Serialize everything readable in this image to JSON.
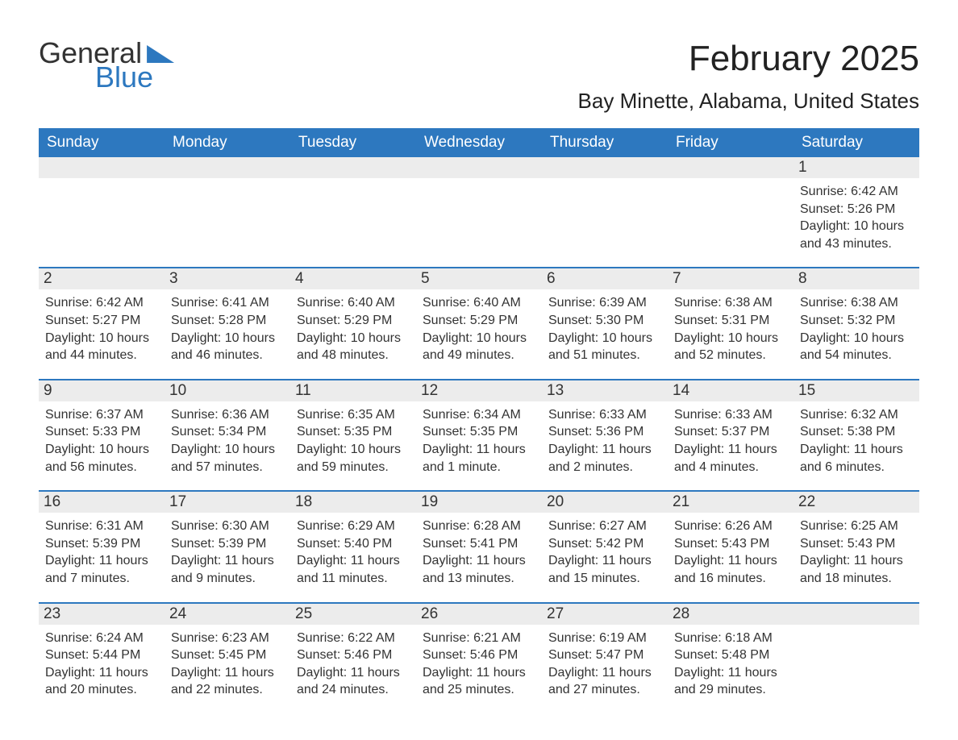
{
  "brand": {
    "name1": "General",
    "name2": "Blue",
    "accent_color": "#2d78bf",
    "text_color": "#333333"
  },
  "header": {
    "month_title": "February 2025",
    "location": "Bay Minette, Alabama, United States",
    "title_fontsize": 44,
    "location_fontsize": 26
  },
  "calendar": {
    "weekday_bg": "#2d78bf",
    "weekday_fg": "#ffffff",
    "cell_header_bg": "#ececec",
    "cell_header_border": "#2d78bf",
    "background_color": "#ffffff",
    "text_color": "#333333",
    "body_fontsize": 16,
    "daynum_fontsize": 19,
    "weekdays": [
      "Sunday",
      "Monday",
      "Tuesday",
      "Wednesday",
      "Thursday",
      "Friday",
      "Saturday"
    ],
    "weeks": [
      [
        {
          "empty": true
        },
        {
          "empty": true
        },
        {
          "empty": true
        },
        {
          "empty": true
        },
        {
          "empty": true
        },
        {
          "empty": true
        },
        {
          "n": "1",
          "sunrise": "Sunrise: 6:42 AM",
          "sunset": "Sunset: 5:26 PM",
          "dl1": "Daylight: 10 hours",
          "dl2": "and 43 minutes."
        }
      ],
      [
        {
          "n": "2",
          "sunrise": "Sunrise: 6:42 AM",
          "sunset": "Sunset: 5:27 PM",
          "dl1": "Daylight: 10 hours",
          "dl2": "and 44 minutes."
        },
        {
          "n": "3",
          "sunrise": "Sunrise: 6:41 AM",
          "sunset": "Sunset: 5:28 PM",
          "dl1": "Daylight: 10 hours",
          "dl2": "and 46 minutes."
        },
        {
          "n": "4",
          "sunrise": "Sunrise: 6:40 AM",
          "sunset": "Sunset: 5:29 PM",
          "dl1": "Daylight: 10 hours",
          "dl2": "and 48 minutes."
        },
        {
          "n": "5",
          "sunrise": "Sunrise: 6:40 AM",
          "sunset": "Sunset: 5:29 PM",
          "dl1": "Daylight: 10 hours",
          "dl2": "and 49 minutes."
        },
        {
          "n": "6",
          "sunrise": "Sunrise: 6:39 AM",
          "sunset": "Sunset: 5:30 PM",
          "dl1": "Daylight: 10 hours",
          "dl2": "and 51 minutes."
        },
        {
          "n": "7",
          "sunrise": "Sunrise: 6:38 AM",
          "sunset": "Sunset: 5:31 PM",
          "dl1": "Daylight: 10 hours",
          "dl2": "and 52 minutes."
        },
        {
          "n": "8",
          "sunrise": "Sunrise: 6:38 AM",
          "sunset": "Sunset: 5:32 PM",
          "dl1": "Daylight: 10 hours",
          "dl2": "and 54 minutes."
        }
      ],
      [
        {
          "n": "9",
          "sunrise": "Sunrise: 6:37 AM",
          "sunset": "Sunset: 5:33 PM",
          "dl1": "Daylight: 10 hours",
          "dl2": "and 56 minutes."
        },
        {
          "n": "10",
          "sunrise": "Sunrise: 6:36 AM",
          "sunset": "Sunset: 5:34 PM",
          "dl1": "Daylight: 10 hours",
          "dl2": "and 57 minutes."
        },
        {
          "n": "11",
          "sunrise": "Sunrise: 6:35 AM",
          "sunset": "Sunset: 5:35 PM",
          "dl1": "Daylight: 10 hours",
          "dl2": "and 59 minutes."
        },
        {
          "n": "12",
          "sunrise": "Sunrise: 6:34 AM",
          "sunset": "Sunset: 5:35 PM",
          "dl1": "Daylight: 11 hours",
          "dl2": "and 1 minute."
        },
        {
          "n": "13",
          "sunrise": "Sunrise: 6:33 AM",
          "sunset": "Sunset: 5:36 PM",
          "dl1": "Daylight: 11 hours",
          "dl2": "and 2 minutes."
        },
        {
          "n": "14",
          "sunrise": "Sunrise: 6:33 AM",
          "sunset": "Sunset: 5:37 PM",
          "dl1": "Daylight: 11 hours",
          "dl2": "and 4 minutes."
        },
        {
          "n": "15",
          "sunrise": "Sunrise: 6:32 AM",
          "sunset": "Sunset: 5:38 PM",
          "dl1": "Daylight: 11 hours",
          "dl2": "and 6 minutes."
        }
      ],
      [
        {
          "n": "16",
          "sunrise": "Sunrise: 6:31 AM",
          "sunset": "Sunset: 5:39 PM",
          "dl1": "Daylight: 11 hours",
          "dl2": "and 7 minutes."
        },
        {
          "n": "17",
          "sunrise": "Sunrise: 6:30 AM",
          "sunset": "Sunset: 5:39 PM",
          "dl1": "Daylight: 11 hours",
          "dl2": "and 9 minutes."
        },
        {
          "n": "18",
          "sunrise": "Sunrise: 6:29 AM",
          "sunset": "Sunset: 5:40 PM",
          "dl1": "Daylight: 11 hours",
          "dl2": "and 11 minutes."
        },
        {
          "n": "19",
          "sunrise": "Sunrise: 6:28 AM",
          "sunset": "Sunset: 5:41 PM",
          "dl1": "Daylight: 11 hours",
          "dl2": "and 13 minutes."
        },
        {
          "n": "20",
          "sunrise": "Sunrise: 6:27 AM",
          "sunset": "Sunset: 5:42 PM",
          "dl1": "Daylight: 11 hours",
          "dl2": "and 15 minutes."
        },
        {
          "n": "21",
          "sunrise": "Sunrise: 6:26 AM",
          "sunset": "Sunset: 5:43 PM",
          "dl1": "Daylight: 11 hours",
          "dl2": "and 16 minutes."
        },
        {
          "n": "22",
          "sunrise": "Sunrise: 6:25 AM",
          "sunset": "Sunset: 5:43 PM",
          "dl1": "Daylight: 11 hours",
          "dl2": "and 18 minutes."
        }
      ],
      [
        {
          "n": "23",
          "sunrise": "Sunrise: 6:24 AM",
          "sunset": "Sunset: 5:44 PM",
          "dl1": "Daylight: 11 hours",
          "dl2": "and 20 minutes."
        },
        {
          "n": "24",
          "sunrise": "Sunrise: 6:23 AM",
          "sunset": "Sunset: 5:45 PM",
          "dl1": "Daylight: 11 hours",
          "dl2": "and 22 minutes."
        },
        {
          "n": "25",
          "sunrise": "Sunrise: 6:22 AM",
          "sunset": "Sunset: 5:46 PM",
          "dl1": "Daylight: 11 hours",
          "dl2": "and 24 minutes."
        },
        {
          "n": "26",
          "sunrise": "Sunrise: 6:21 AM",
          "sunset": "Sunset: 5:46 PM",
          "dl1": "Daylight: 11 hours",
          "dl2": "and 25 minutes."
        },
        {
          "n": "27",
          "sunrise": "Sunrise: 6:19 AM",
          "sunset": "Sunset: 5:47 PM",
          "dl1": "Daylight: 11 hours",
          "dl2": "and 27 minutes."
        },
        {
          "n": "28",
          "sunrise": "Sunrise: 6:18 AM",
          "sunset": "Sunset: 5:48 PM",
          "dl1": "Daylight: 11 hours",
          "dl2": "and 29 minutes."
        },
        {
          "empty": true
        }
      ]
    ]
  }
}
